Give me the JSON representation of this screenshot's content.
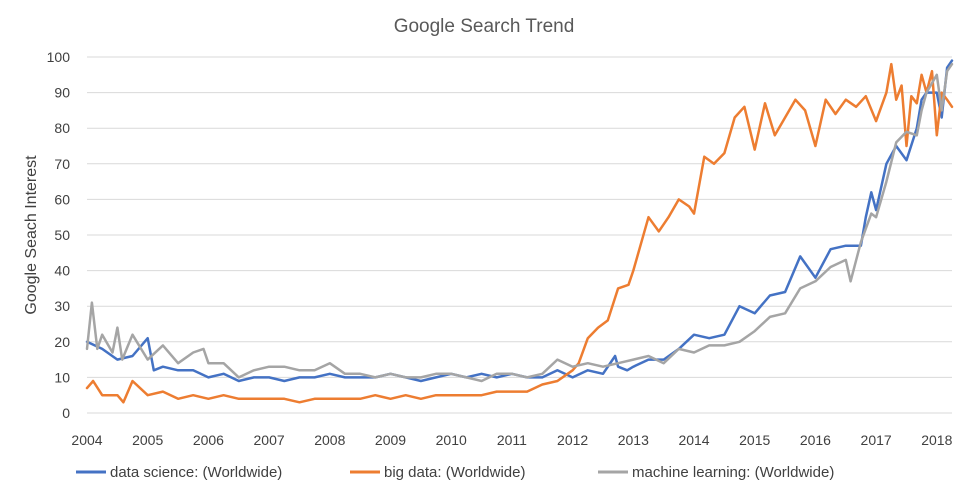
{
  "chart_data": {
    "type": "line",
    "title": "Google Search Trend",
    "xlabel": "",
    "ylabel": "Google Seach Interest",
    "ylim": [
      0,
      100
    ],
    "yticks": [
      0,
      10,
      20,
      30,
      40,
      50,
      60,
      70,
      80,
      90,
      100
    ],
    "xticks": [
      "2004",
      "2005",
      "2006",
      "2007",
      "2008",
      "2009",
      "2010",
      "2011",
      "2012",
      "2013",
      "2014",
      "2015",
      "2016",
      "2017",
      "2018"
    ],
    "xlim": [
      2004,
      2018.25
    ],
    "grid": "horizontal",
    "legend_position": "bottom",
    "series": [
      {
        "name": "data science: (Worldwide)",
        "color": "#4472c4",
        "x": [
          2004.0,
          2004.25,
          2004.5,
          2004.75,
          2005.0,
          2005.1,
          2005.25,
          2005.5,
          2005.75,
          2006.0,
          2006.25,
          2006.5,
          2006.75,
          2007.0,
          2007.25,
          2007.5,
          2007.75,
          2008.0,
          2008.25,
          2008.5,
          2008.75,
          2009.0,
          2009.25,
          2009.5,
          2009.75,
          2010.0,
          2010.25,
          2010.5,
          2010.75,
          2011.0,
          2011.25,
          2011.5,
          2011.75,
          2012.0,
          2012.25,
          2012.5,
          2012.7,
          2012.75,
          2012.9,
          2013.0,
          2013.25,
          2013.5,
          2013.75,
          2014.0,
          2014.25,
          2014.5,
          2014.75,
          2015.0,
          2015.25,
          2015.5,
          2015.75,
          2016.0,
          2016.25,
          2016.5,
          2016.75,
          2016.83,
          2016.92,
          2017.0,
          2017.17,
          2017.33,
          2017.5,
          2017.67,
          2017.75,
          2017.83,
          2018.0,
          2018.08,
          2018.17,
          2018.25
        ],
        "values": [
          20,
          18,
          15,
          16,
          21,
          12,
          13,
          12,
          12,
          10,
          11,
          9,
          10,
          10,
          9,
          10,
          10,
          11,
          10,
          10,
          10,
          11,
          10,
          9,
          10,
          11,
          10,
          11,
          10,
          11,
          10,
          10,
          12,
          10,
          12,
          11,
          16,
          13,
          12,
          13,
          15,
          15,
          18,
          22,
          21,
          22,
          30,
          28,
          33,
          34,
          44,
          38,
          46,
          47,
          47,
          55,
          62,
          57,
          70,
          75,
          71,
          80,
          88,
          90,
          90,
          83,
          97,
          99
        ]
      },
      {
        "name": "big data: (Worldwide)",
        "color": "#ed7d31",
        "x": [
          2004.0,
          2004.1,
          2004.25,
          2004.5,
          2004.6,
          2004.75,
          2005.0,
          2005.25,
          2005.5,
          2005.75,
          2006.0,
          2006.25,
          2006.5,
          2006.75,
          2007.0,
          2007.25,
          2007.5,
          2007.75,
          2008.0,
          2008.25,
          2008.5,
          2008.75,
          2009.0,
          2009.25,
          2009.5,
          2009.75,
          2010.0,
          2010.25,
          2010.5,
          2010.75,
          2011.0,
          2011.25,
          2011.5,
          2011.75,
          2012.0,
          2012.1,
          2012.25,
          2012.42,
          2012.58,
          2012.75,
          2012.92,
          2013.0,
          2013.1,
          2013.25,
          2013.42,
          2013.58,
          2013.75,
          2013.92,
          2014.0,
          2014.17,
          2014.33,
          2014.5,
          2014.67,
          2014.83,
          2015.0,
          2015.17,
          2015.33,
          2015.5,
          2015.67,
          2015.83,
          2016.0,
          2016.17,
          2016.33,
          2016.5,
          2016.67,
          2016.83,
          2017.0,
          2017.17,
          2017.25,
          2017.33,
          2017.42,
          2017.5,
          2017.58,
          2017.67,
          2017.75,
          2017.83,
          2017.92,
          2018.0,
          2018.08,
          2018.17,
          2018.25
        ],
        "values": [
          7,
          9,
          5,
          5,
          3,
          9,
          5,
          6,
          4,
          5,
          4,
          5,
          4,
          4,
          4,
          4,
          3,
          4,
          4,
          4,
          4,
          5,
          4,
          5,
          4,
          5,
          5,
          5,
          5,
          6,
          6,
          6,
          8,
          9,
          12,
          14,
          21,
          24,
          26,
          35,
          36,
          40,
          46,
          55,
          51,
          55,
          60,
          58,
          56,
          72,
          70,
          73,
          83,
          86,
          74,
          87,
          78,
          83,
          88,
          85,
          75,
          88,
          84,
          88,
          86,
          89,
          82,
          90,
          98,
          88,
          92,
          75,
          89,
          87,
          95,
          90,
          96,
          78,
          90,
          88,
          86
        ]
      },
      {
        "name": "machine learning: (Worldwide)",
        "color": "#a5a5a5",
        "x": [
          2004.0,
          2004.08,
          2004.17,
          2004.25,
          2004.42,
          2004.5,
          2004.58,
          2004.75,
          2005.0,
          2005.25,
          2005.5,
          2005.75,
          2005.92,
          2006.0,
          2006.25,
          2006.5,
          2006.75,
          2007.0,
          2007.25,
          2007.5,
          2007.75,
          2008.0,
          2008.25,
          2008.5,
          2008.75,
          2009.0,
          2009.25,
          2009.5,
          2009.75,
          2010.0,
          2010.25,
          2010.5,
          2010.75,
          2011.0,
          2011.25,
          2011.5,
          2011.75,
          2012.0,
          2012.25,
          2012.5,
          2012.75,
          2013.0,
          2013.25,
          2013.5,
          2013.75,
          2014.0,
          2014.25,
          2014.5,
          2014.75,
          2015.0,
          2015.25,
          2015.5,
          2015.75,
          2016.0,
          2016.25,
          2016.5,
          2016.58,
          2016.75,
          2016.92,
          2017.0,
          2017.17,
          2017.33,
          2017.5,
          2017.67,
          2017.75,
          2017.83,
          2018.0,
          2018.08,
          2018.17,
          2018.25
        ],
        "values": [
          18,
          31,
          18,
          22,
          17,
          24,
          15,
          22,
          15,
          19,
          14,
          17,
          18,
          14,
          14,
          10,
          12,
          13,
          13,
          12,
          12,
          14,
          11,
          11,
          10,
          11,
          10,
          10,
          11,
          11,
          10,
          9,
          11,
          11,
          10,
          11,
          15,
          13,
          14,
          13,
          14,
          15,
          16,
          14,
          18,
          17,
          19,
          19,
          20,
          23,
          27,
          28,
          35,
          37,
          41,
          43,
          37,
          48,
          56,
          55,
          65,
          76,
          79,
          78,
          85,
          90,
          95,
          85,
          96,
          98
        ]
      }
    ]
  }
}
